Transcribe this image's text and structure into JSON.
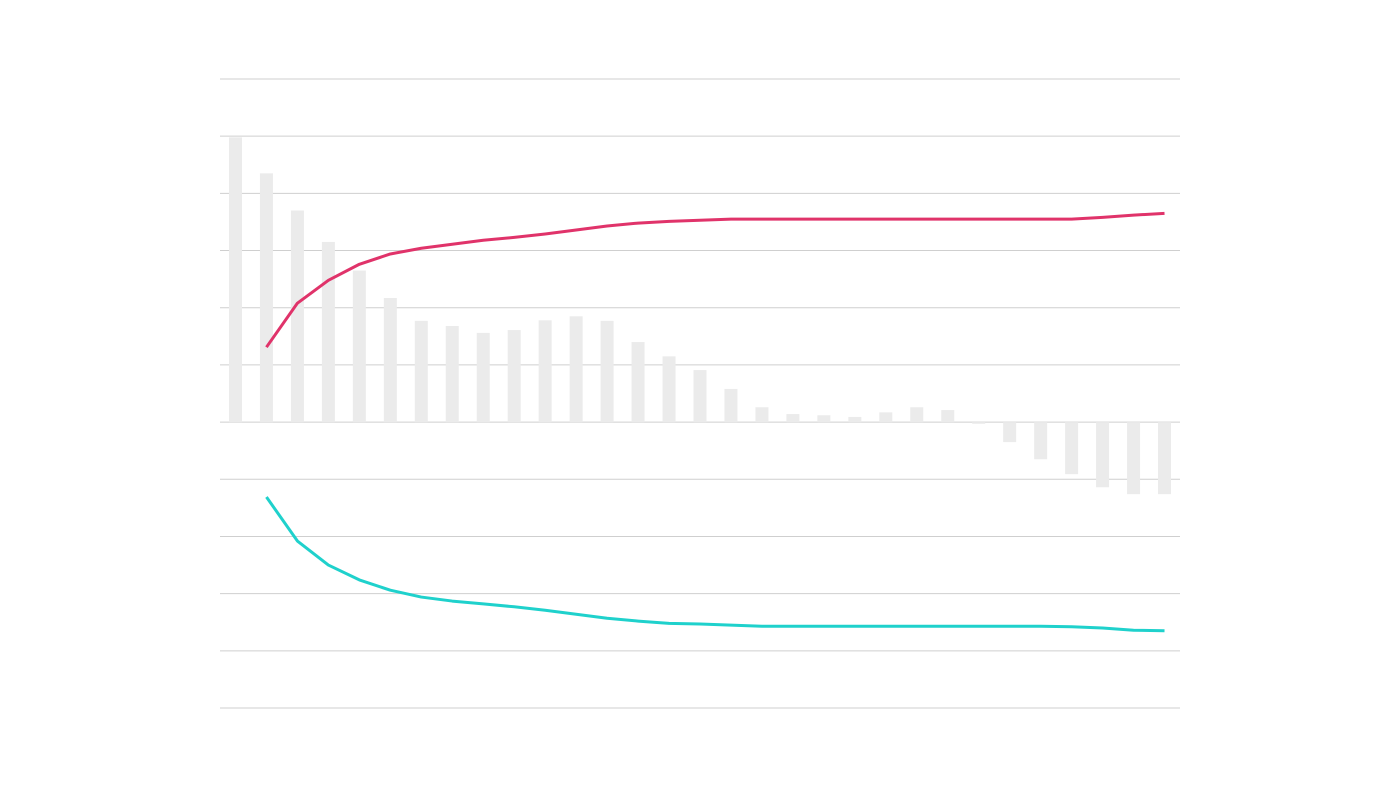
{
  "chart_data": {
    "type": "bar-line",
    "categories": [
      null,
      null,
      null,
      null,
      null,
      null,
      null,
      null,
      null,
      null,
      null,
      null,
      null,
      null,
      null,
      null,
      null,
      null,
      null,
      null,
      null,
      null,
      null,
      null,
      null,
      null,
      null,
      null,
      null,
      null,
      null
    ],
    "series": [
      {
        "type": "bar",
        "color": "#ebebeb",
        "values": [
          4.98,
          4.35,
          3.7,
          3.15,
          2.65,
          2.17,
          1.77,
          1.68,
          1.56,
          1.61,
          1.78,
          1.85,
          1.77,
          1.4,
          1.15,
          0.91,
          0.58,
          0.26,
          0.14,
          0.12,
          0.09,
          0.17,
          0.26,
          0.21,
          -0.03,
          -0.35,
          -0.65,
          -0.91,
          -1.14,
          -1.26,
          -1.26
        ]
      },
      {
        "type": "line",
        "color": "#e0336a",
        "values": [
          null,
          1.31,
          2.08,
          2.48,
          2.76,
          2.94,
          3.04,
          3.11,
          3.18,
          3.23,
          3.29,
          3.36,
          3.43,
          3.48,
          3.51,
          3.53,
          3.55,
          3.55,
          3.55,
          3.55,
          3.55,
          3.55,
          3.55,
          3.55,
          3.55,
          3.55,
          3.55,
          3.55,
          3.58,
          3.62,
          3.65
        ]
      },
      {
        "type": "line",
        "color": "#1fd1cc",
        "values": [
          null,
          -1.31,
          -2.08,
          -2.5,
          -2.76,
          -2.94,
          -3.06,
          -3.13,
          -3.18,
          -3.23,
          -3.29,
          -3.36,
          -3.43,
          -3.48,
          -3.52,
          -3.53,
          -3.55,
          -3.57,
          -3.57,
          -3.57,
          -3.57,
          -3.57,
          -3.57,
          -3.57,
          -3.57,
          -3.57,
          -3.57,
          -3.58,
          -3.6,
          -3.64,
          -3.65
        ]
      }
    ],
    "ylim": [
      -5,
      6
    ],
    "yticks": [
      -5,
      -4,
      -3,
      -2,
      -1,
      0,
      1,
      2,
      3,
      4,
      5,
      6
    ],
    "grid": true
  }
}
